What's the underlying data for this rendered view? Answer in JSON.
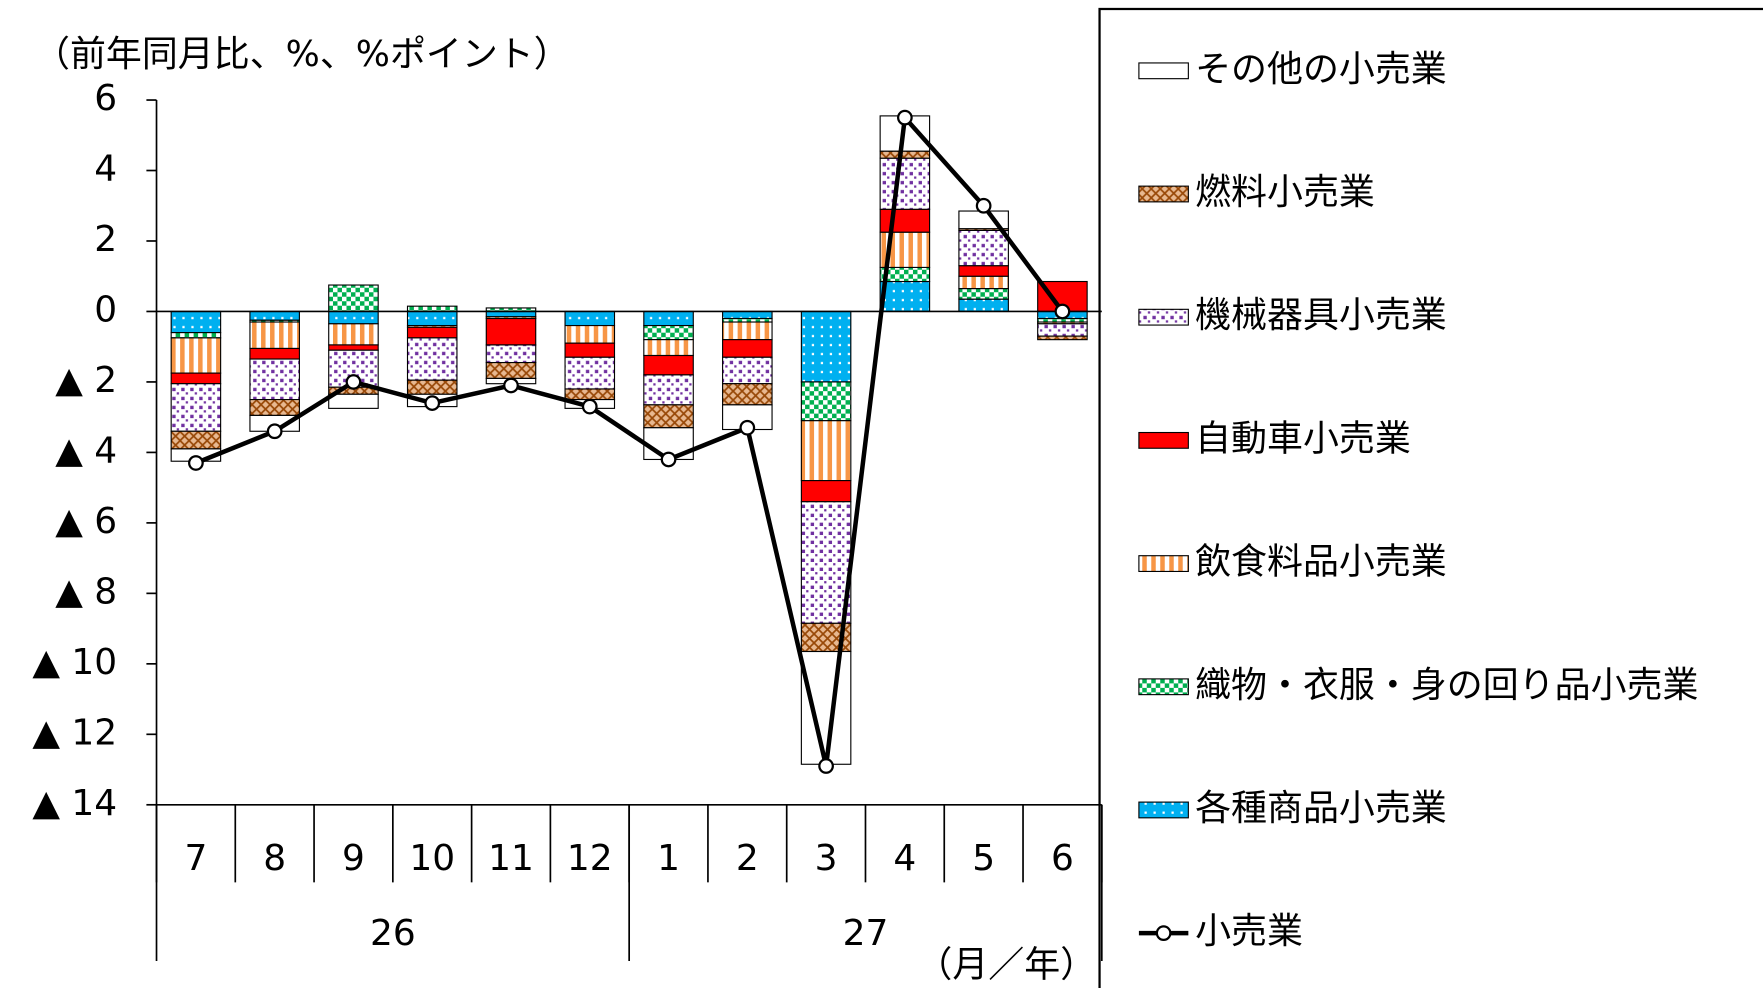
{
  "chart_data": {
    "type": "stacked_bar_line",
    "y_label": "（前年同月比、%、%ポイント）",
    "x_unit": "（月／年）",
    "categories": [
      "7",
      "8",
      "9",
      "10",
      "11",
      "12",
      "1",
      "2",
      "3",
      "4",
      "5",
      "6"
    ],
    "year_groups": [
      "26",
      "27"
    ],
    "ylim": [
      -14,
      6
    ],
    "yticks": [
      6,
      4,
      2,
      0,
      {
        "value": -2,
        "label": "▲ 2"
      },
      {
        "value": -4,
        "label": "▲ 4"
      },
      {
        "value": -6,
        "label": "▲ 6"
      },
      {
        "value": -8,
        "label": "▲ 8"
      },
      {
        "value": -10,
        "label": "▲ 10"
      },
      {
        "value": -12,
        "label": "▲ 12"
      },
      {
        "value": -14,
        "label": "▲ 14"
      }
    ],
    "series": [
      {
        "name": "各種商品小売業",
        "color": "#00b0f0",
        "pattern": "dots",
        "values": [
          -0.6,
          -0.25,
          -0.35,
          -0.4,
          -0.15,
          -0.4,
          -0.4,
          -0.2,
          -2.0,
          0.85,
          0.35,
          -0.2
        ]
      },
      {
        "name": "織物・衣服・身の回り品小売業",
        "color": "#00b050",
        "pattern": "checker",
        "values": [
          -0.15,
          -0.05,
          0.75,
          0.15,
          0.1,
          0,
          -0.4,
          -0.1,
          -1.1,
          0.4,
          0.3,
          -0.1
        ]
      },
      {
        "name": "飲食料品小売業",
        "color": "#f79646",
        "pattern": "vstripes",
        "values": [
          -1.0,
          -0.75,
          -0.6,
          -0.05,
          -0.05,
          -0.5,
          -0.45,
          -0.5,
          -1.7,
          1.0,
          0.35,
          -0.05
        ]
      },
      {
        "name": "自動車小売業",
        "color": "#ff0000",
        "pattern": "solid",
        "values": [
          -0.3,
          -0.3,
          -0.15,
          -0.3,
          -0.75,
          -0.4,
          -0.55,
          -0.5,
          -0.6,
          0.65,
          0.3,
          0.85
        ]
      },
      {
        "name": "機械器具小売業",
        "color": "#7030a0",
        "pattern": "sparse-dots",
        "values": [
          -1.35,
          -1.15,
          -1.05,
          -1.2,
          -0.5,
          -0.9,
          -0.85,
          -0.75,
          -3.45,
          1.45,
          1.0,
          -0.35
        ]
      },
      {
        "name": "燃料小売業",
        "color": "#984807",
        "pattern": "crosshatch",
        "values": [
          -0.5,
          -0.45,
          -0.2,
          -0.4,
          -0.45,
          -0.3,
          -0.65,
          -0.6,
          -0.8,
          0.2,
          0.05,
          -0.1
        ]
      },
      {
        "name": "その他の小売業",
        "color": "#ffffff",
        "pattern": "solid",
        "values": [
          -0.35,
          -0.45,
          -0.4,
          -0.35,
          -0.15,
          -0.25,
          -0.9,
          -0.7,
          -3.2,
          1.0,
          0.5,
          0
        ]
      }
    ],
    "line": {
      "name": "小売業",
      "color": "#000000",
      "values": [
        -4.3,
        -3.4,
        -2.0,
        -2.6,
        -2.1,
        -2.7,
        -4.2,
        -3.3,
        -12.9,
        5.5,
        3.0,
        0.0
      ]
    }
  }
}
